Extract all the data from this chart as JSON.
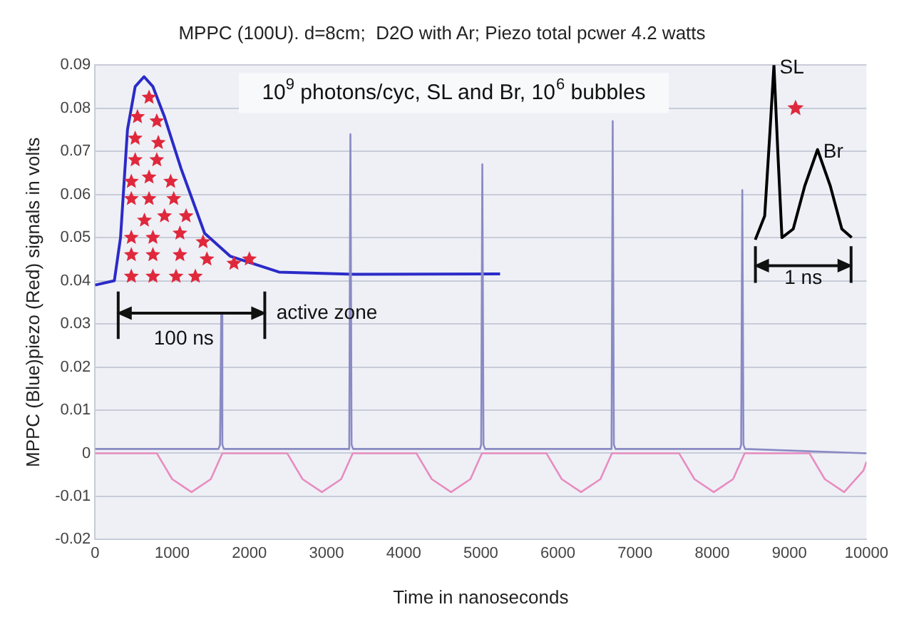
{
  "chart_data": {
    "type": "line",
    "title": "MPPC (100U). d=8cm;  D2O with Ar; Piezo total pcwer 4.2 watts",
    "xlabel": "Time in nanoseconds",
    "ylabel": "MPPC (Blue)piezo (Red) signals in volts",
    "xlim": [
      0,
      10000
    ],
    "xticks": [
      0,
      1000,
      2000,
      3000,
      4000,
      5000,
      6000,
      7000,
      8000,
      9000,
      10000
    ],
    "ylim": [
      -0.02,
      0.09
    ],
    "yticks": [
      -0.02,
      -0.01,
      0,
      0.01,
      0.02,
      0.03,
      0.04,
      0.05,
      0.06,
      0.07,
      0.08,
      0.09
    ],
    "grid": "y",
    "legend": false,
    "marker": "none",
    "line_style": "solid",
    "series": [
      {
        "color": "#8a8ac4",
        "x": [
          0,
          1600,
          1620,
          1635,
          1650,
          1670,
          3280,
          3295,
          3310,
          3325,
          3345,
          4990,
          5005,
          5020,
          5035,
          5055,
          6680,
          6695,
          6710,
          6725,
          6745,
          8360,
          8375,
          8390,
          8405,
          8425,
          10000
        ],
        "values": [
          0.001,
          0.001,
          0.002,
          0.032,
          0.002,
          0.001,
          0.001,
          0.002,
          0.074,
          0.002,
          0.001,
          0.001,
          0.002,
          0.067,
          0.002,
          0.001,
          0.001,
          0.002,
          0.077,
          0.002,
          0.001,
          0.001,
          0.002,
          0.061,
          0.002,
          0.001,
          0
        ]
      },
      {
        "color": "#e88cc0",
        "x": [
          0,
          800,
          1000,
          1250,
          1500,
          1650,
          2490,
          2690,
          2940,
          3190,
          3340,
          4165,
          4365,
          4615,
          4865,
          5015,
          5850,
          6050,
          6300,
          6550,
          6700,
          7570,
          7770,
          8020,
          8270,
          8420,
          9260,
          9460,
          9710,
          9960,
          10000
        ],
        "values": [
          0,
          0,
          -0.006,
          -0.009,
          -0.006,
          0,
          0,
          -0.006,
          -0.009,
          -0.006,
          0,
          0,
          -0.006,
          -0.009,
          -0.006,
          0,
          0,
          -0.006,
          -0.009,
          -0.006,
          0,
          0,
          -0.006,
          -0.009,
          -0.006,
          0,
          0,
          -0.006,
          -0.009,
          -0.004,
          -0.002
        ]
      },
      {
        "color": "#2b2bc8",
        "x": [
          0,
          250,
          330,
          420,
          520,
          635,
          750,
          900,
          1115,
          1420,
          1750,
          2385,
          3350,
          5250
        ],
        "values": [
          0.039,
          0.04,
          0.05,
          0.075,
          0.085,
          0.0873,
          0.085,
          0.078,
          0.066,
          0.051,
          0.0457,
          0.042,
          0.0415,
          0.0416
        ]
      },
      {
        "color": "#000000",
        "x": [
          8558,
          8680,
          8750,
          8800,
          8850,
          8904,
          9050,
          9200,
          9365,
          9530,
          9680,
          9808
        ],
        "values": [
          0.0495,
          0.055,
          0.075,
          0.09,
          0.07,
          0.05,
          0.052,
          0.062,
          0.0704,
          0.062,
          0.052,
          0.05
        ]
      }
    ],
    "annotations": [
      "10$^{9}$ photons/cyc, SL and Br, 10$^{6}$ bubbles",
      "active zone",
      "100 ns",
      "1 ns",
      {
        "text": "SL",
        "x": 8800,
        "y": 0.09
      },
      {
        "text": "Br",
        "x": 9365,
        "y": 0.0704
      }
    ]
  }
}
